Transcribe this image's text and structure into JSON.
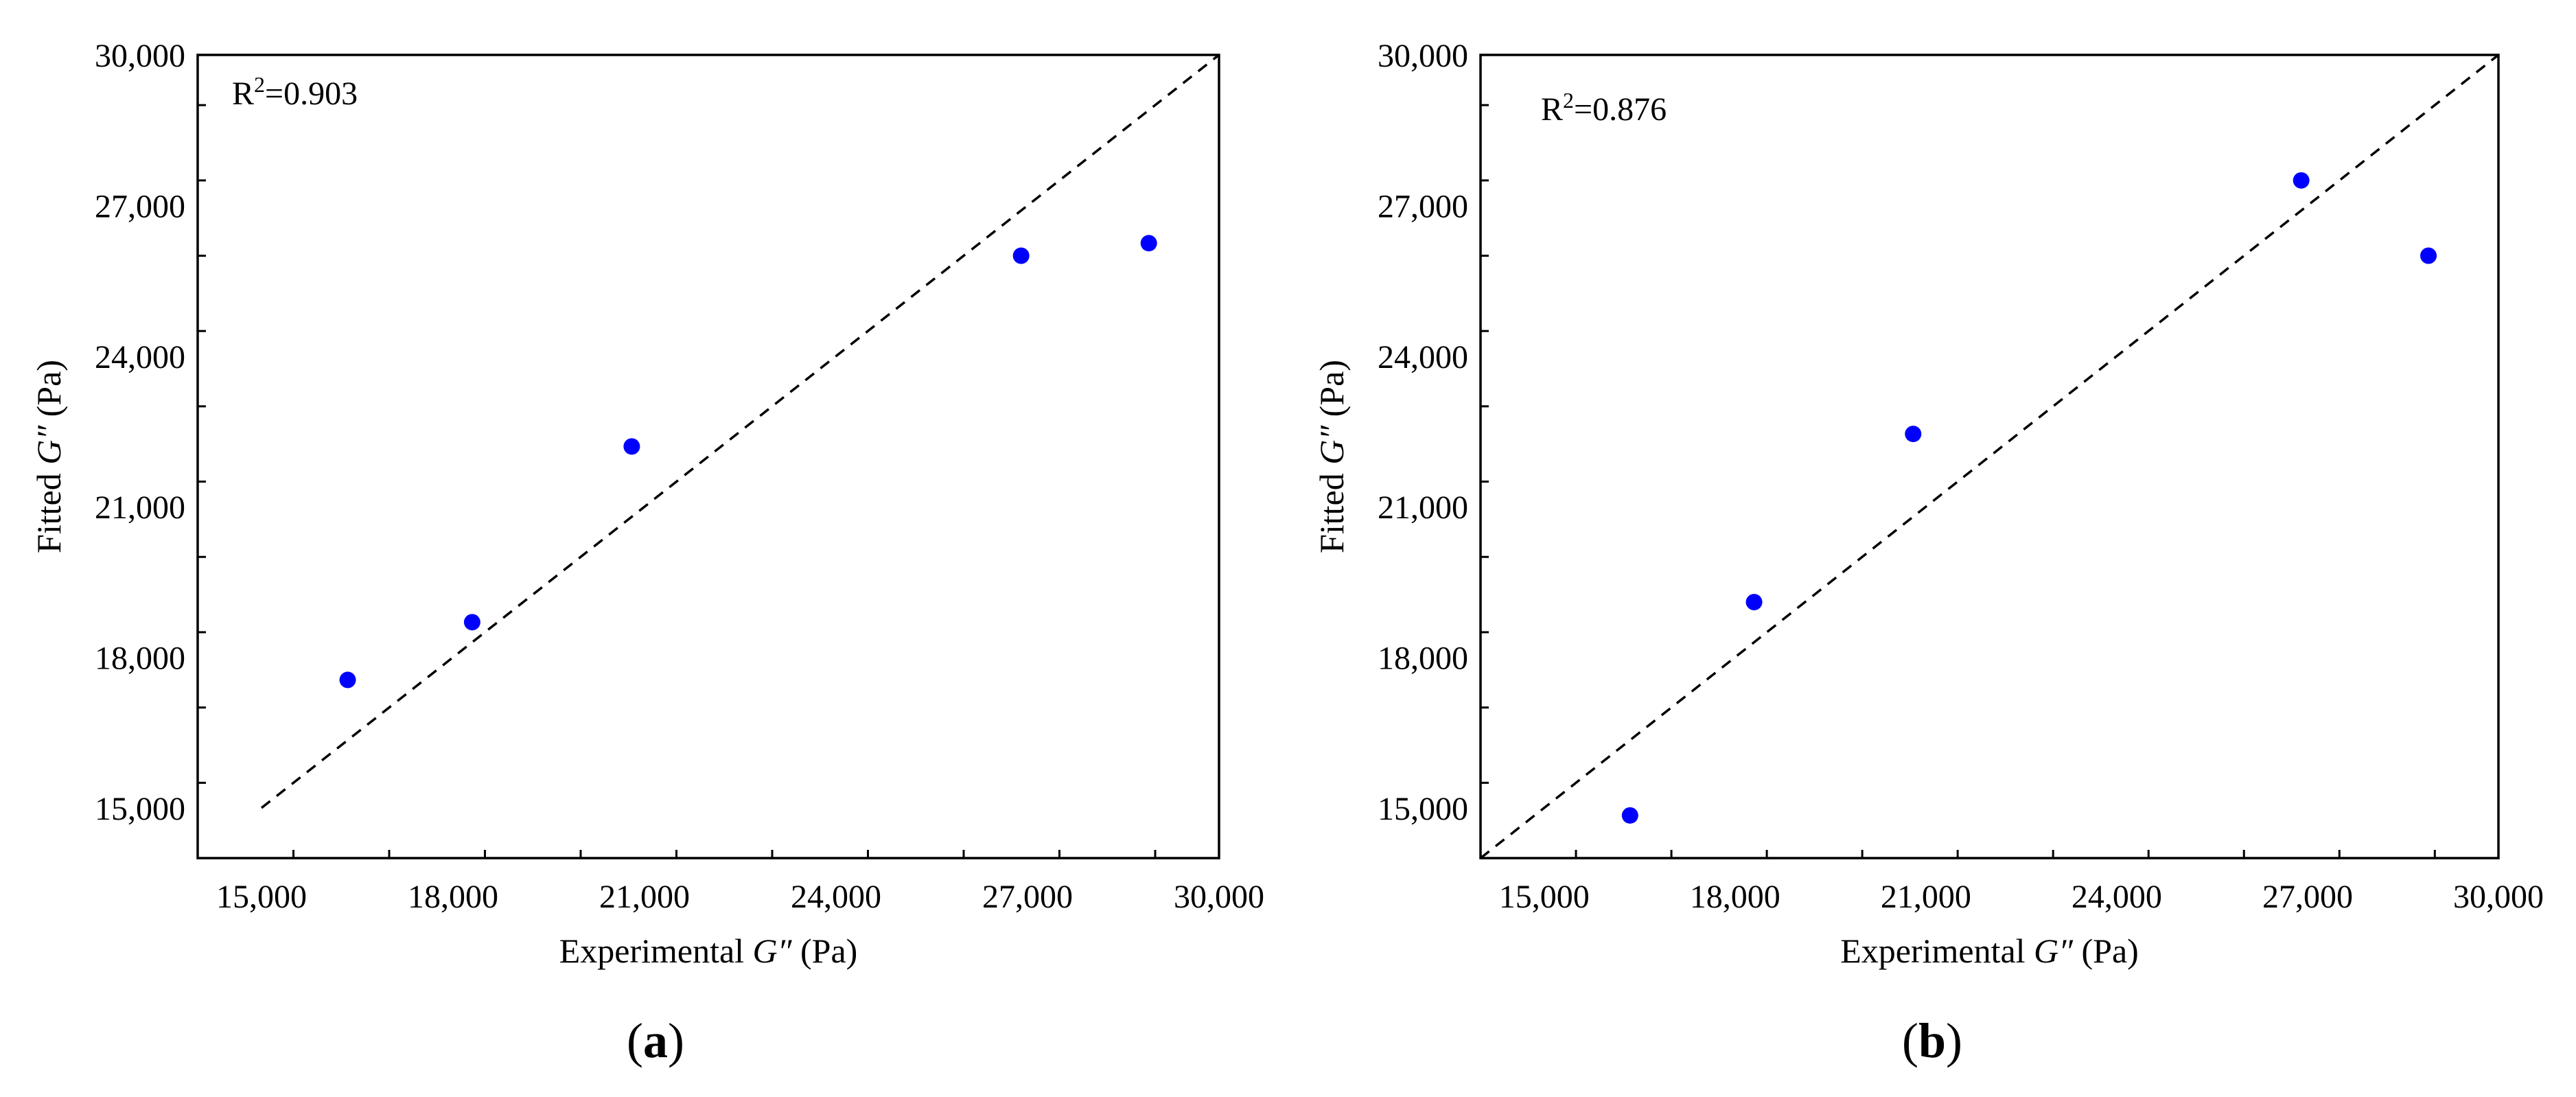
{
  "chart_data": [
    {
      "type": "scatter",
      "panel_label": "a",
      "title": "",
      "annotation": {
        "prefix": "R",
        "superscript": "2",
        "suffix": "=0.903"
      },
      "xlabel": {
        "pre": "Experimental ",
        "italic": "G″",
        "post": " (Pa)"
      },
      "ylabel": {
        "pre": "Fitted ",
        "italic": "G″",
        "post": " (Pa)"
      },
      "xlim": [
        14000,
        30000
      ],
      "ylim": [
        14000,
        30000
      ],
      "xticks": [
        15000,
        18000,
        21000,
        24000,
        27000,
        30000
      ],
      "yticks": [
        15000,
        18000,
        21000,
        24000,
        27000,
        30000
      ],
      "xtick_labels": [
        "15,000",
        "18,000",
        "21,000",
        "24,000",
        "27,000",
        "30,000"
      ],
      "ytick_labels": [
        "15,000",
        "18,000",
        "21,000",
        "24,000",
        "27,000",
        "30,000"
      ],
      "reference_line": {
        "style": "dashed",
        "from": [
          15000,
          15000
        ],
        "to": [
          30000,
          30000
        ]
      },
      "series": [
        {
          "name": "fitted",
          "color": "#0000ff",
          "x": [
            16350,
            18300,
            20800,
            26900,
            28900
          ],
          "y": [
            17550,
            18700,
            22200,
            26000,
            26250
          ]
        }
      ]
    },
    {
      "type": "scatter",
      "panel_label": "b",
      "title": "",
      "annotation": {
        "prefix": "R",
        "superscript": "2",
        "suffix": "=0.876"
      },
      "xlabel": {
        "pre": "Experimental ",
        "italic": "G″",
        "post": " (Pa)"
      },
      "ylabel": {
        "pre": "Fitted ",
        "italic": "G″",
        "post": " (Pa)"
      },
      "xlim": [
        14000,
        30000
      ],
      "ylim": [
        14000,
        30000
      ],
      "xticks": [
        15000,
        18000,
        21000,
        24000,
        27000,
        30000
      ],
      "yticks": [
        15000,
        18000,
        21000,
        24000,
        27000,
        30000
      ],
      "xtick_labels": [
        "15,000",
        "18,000",
        "21,000",
        "24,000",
        "27,000",
        "30,000"
      ],
      "ytick_labels": [
        "15,000",
        "18,000",
        "21,000",
        "24,000",
        "27,000",
        "30,000"
      ],
      "reference_line": {
        "style": "dashed",
        "from": [
          14000,
          14000
        ],
        "to": [
          30000,
          30000
        ]
      },
      "series": [
        {
          "name": "fitted",
          "color": "#0000ff",
          "x": [
            16350,
            18300,
            20800,
            26900,
            28900
          ],
          "y": [
            14850,
            19100,
            22450,
            27500,
            26000
          ]
        }
      ]
    }
  ]
}
